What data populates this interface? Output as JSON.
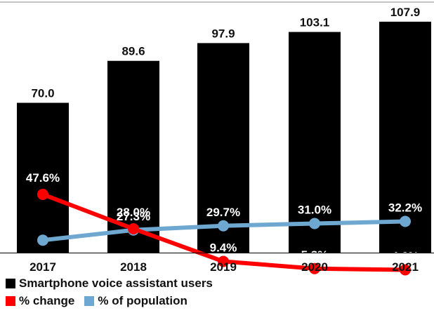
{
  "chart_data": {
    "type": "bar",
    "categories": [
      "2017",
      "2018",
      "2019",
      "2020",
      "2021"
    ],
    "series": [
      {
        "name": "Smartphone voice assistant users",
        "kind": "bar",
        "values": [
          70.0,
          89.6,
          97.9,
          103.1,
          107.9
        ],
        "labels": [
          "70.0",
          "89.6",
          "97.9",
          "103.1",
          "107.9"
        ],
        "color": "#000000"
      },
      {
        "name": "% change",
        "kind": "line",
        "values": [
          47.6,
          28.0,
          9.4,
          5.3,
          4.6
        ],
        "labels": [
          "47.6%",
          "28.0%",
          "9.4%",
          "5.3%",
          "4.6%"
        ],
        "color": "#ff0000"
      },
      {
        "name": "% of population",
        "kind": "line",
        "values": [
          21.5,
          27.3,
          29.7,
          31.0,
          32.2
        ],
        "labels": [
          "21.5%",
          "27.3%",
          "29.7%",
          "31.0%",
          "32.2%"
        ],
        "color": "#6ea8d0"
      }
    ],
    "grid": false,
    "legend_position": "bottom-left"
  },
  "legend": {
    "bars_label": "Smartphone voice assistant users",
    "change_label": "% change",
    "population_label": "% of population"
  },
  "colors": {
    "bar": "#000000",
    "change": "#ff0000",
    "population": "#6ea8d0"
  }
}
